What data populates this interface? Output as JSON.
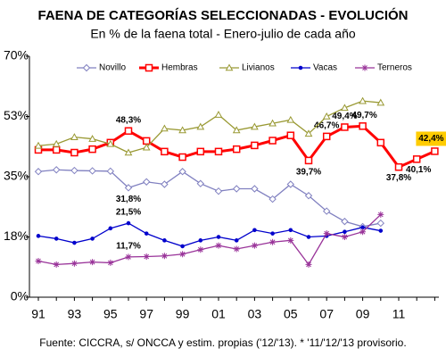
{
  "chart_data": {
    "type": "line",
    "title": "FAENA DE CATEGORÍAS SELECCIONADAS - EVOLUCIÓN",
    "subtitle": "En % de la faena total - Enero-julio de cada año",
    "footnote": "Fuente: CICCRA, s/ ONCCA y estim. propias ('12/'13). * '11/'12/'13 provisorio.",
    "categories": [
      "91",
      null,
      "93",
      null,
      "95",
      null,
      "97",
      null,
      "99",
      null,
      "01",
      null,
      "03",
      null,
      "05",
      null,
      "07",
      null,
      "09",
      null,
      "11",
      null,
      null
    ],
    "ylim": [
      0,
      70
    ],
    "yticks": [
      {
        "value": 0,
        "label": "0%"
      },
      {
        "value": 17.5,
        "label": "18%"
      },
      {
        "value": 35,
        "label": "35%"
      },
      {
        "value": 52.5,
        "label": "53%"
      },
      {
        "value": 70,
        "label": "70%"
      }
    ],
    "series": [
      {
        "name": "Novillo",
        "color": "#8080c0",
        "marker": "diamond",
        "values": [
          36.5,
          37,
          36.8,
          36.7,
          36.6,
          31.8,
          33.5,
          32.8,
          36.5,
          33,
          30.8,
          31.5,
          31.5,
          28.5,
          32.8,
          29.5,
          25,
          22,
          20.5,
          21.5,
          null,
          null,
          null
        ],
        "value_labels": [
          null,
          null,
          null,
          null,
          null,
          "31,8%",
          null,
          null,
          null,
          null,
          null,
          null,
          null,
          null,
          null,
          null,
          null,
          null,
          null,
          null,
          null,
          null,
          null
        ]
      },
      {
        "name": "Hembras",
        "color": "#ff0000",
        "marker": "square",
        "values": [
          42.8,
          42.8,
          42,
          43,
          44.9,
          48.3,
          45.4,
          42.3,
          40.7,
          42.3,
          42.3,
          43,
          44.1,
          45.5,
          47,
          39.7,
          46.7,
          49.4,
          49.7,
          44.9,
          37.8,
          40.1,
          42.4
        ],
        "value_labels": [
          null,
          null,
          null,
          null,
          null,
          "48,3%",
          null,
          null,
          null,
          null,
          null,
          null,
          null,
          null,
          null,
          "39,7%",
          "46,7%",
          "49,4%",
          "49,7%",
          null,
          "37,8%",
          "40,1%",
          "42,4%"
        ]
      },
      {
        "name": "Livianos",
        "color": "#999933",
        "marker": "triangle",
        "values": [
          44,
          44.5,
          46.5,
          46,
          44.5,
          42,
          43.5,
          49,
          48.5,
          49.5,
          53,
          48.5,
          49.5,
          50.5,
          51.5,
          47.5,
          52.5,
          55,
          57,
          56.5,
          null,
          null,
          null
        ]
      },
      {
        "name": "Vacas",
        "color": "#0000cc",
        "marker": "dot",
        "values": [
          17.8,
          17,
          15.8,
          17,
          20,
          21.5,
          18.5,
          16.5,
          14.8,
          16.5,
          17.5,
          16.5,
          19.5,
          18.5,
          19.5,
          17.5,
          17.8,
          19,
          20.3,
          19.3,
          null,
          null,
          null
        ],
        "value_labels": [
          null,
          null,
          null,
          null,
          null,
          "21,5%",
          null,
          null,
          null,
          null,
          null,
          null,
          null,
          null,
          null,
          null,
          null,
          null,
          null,
          null,
          null,
          null,
          null
        ]
      },
      {
        "name": "Terneros",
        "color": "#993399",
        "marker": "star",
        "values": [
          10.5,
          9.5,
          9.8,
          10.2,
          10,
          11.7,
          11.8,
          12,
          12.5,
          13.8,
          15,
          14,
          15,
          16,
          16.5,
          9.5,
          18.5,
          17.5,
          19,
          24,
          null,
          null,
          null
        ],
        "value_labels": [
          null,
          null,
          null,
          null,
          null,
          "11,7%",
          null,
          null,
          null,
          null,
          null,
          null,
          null,
          null,
          null,
          null,
          null,
          null,
          null,
          null,
          null,
          null,
          null
        ]
      }
    ]
  }
}
